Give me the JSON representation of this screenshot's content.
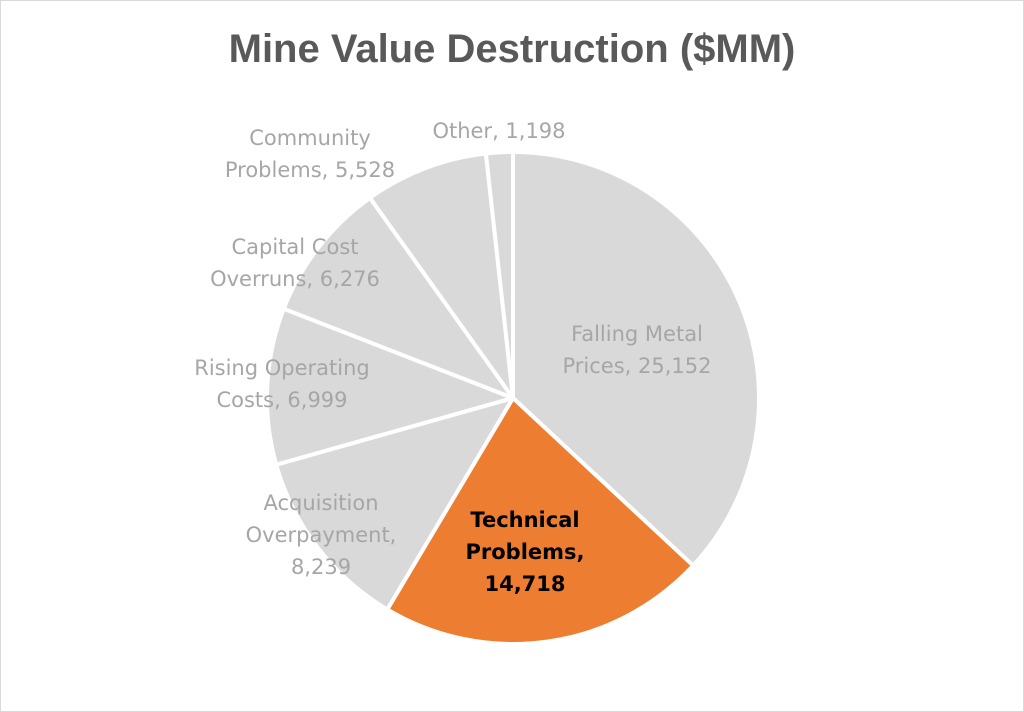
{
  "chart_data": {
    "type": "pie",
    "title": "Mine Value Destruction ($MM)",
    "start_angle_deg": 0,
    "direction": "clockwise",
    "slices": [
      {
        "label_lines": [
          "Falling Metal",
          "Prices,  25,152"
        ],
        "value": 25152,
        "color": "#d9d9d9",
        "label_color": "#a6a6a6",
        "highlight": false
      },
      {
        "label_lines": [
          "Technical",
          "Problems,",
          "14,718"
        ],
        "value": 14718,
        "color": "#ed7d31",
        "label_color": "#000000",
        "highlight": true
      },
      {
        "label_lines": [
          "Acquisition",
          "Overpayment,",
          "8,239"
        ],
        "value": 8239,
        "color": "#d9d9d9",
        "label_color": "#a6a6a6",
        "highlight": false
      },
      {
        "label_lines": [
          "Rising Operating",
          "Costs,  6,999"
        ],
        "value": 6999,
        "color": "#d9d9d9",
        "label_color": "#a6a6a6",
        "highlight": false
      },
      {
        "label_lines": [
          "Capital Cost",
          "Overruns,  6,276"
        ],
        "value": 6276,
        "color": "#d9d9d9",
        "label_color": "#a6a6a6",
        "highlight": false
      },
      {
        "label_lines": [
          "Community",
          "Problems,  5,528"
        ],
        "value": 5528,
        "color": "#d9d9d9",
        "label_color": "#a6a6a6",
        "highlight": false
      },
      {
        "label_lines": [
          "Other,  1,198"
        ],
        "value": 1198,
        "color": "#d9d9d9",
        "label_color": "#a6a6a6",
        "highlight": false
      }
    ]
  }
}
